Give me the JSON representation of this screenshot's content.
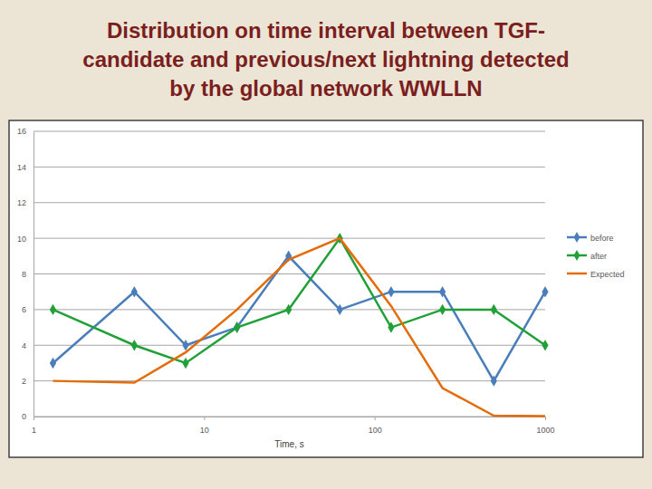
{
  "chart_data": {
    "type": "line",
    "title": "Distribution on time interval between TGF-\ncandidate and previous/next lightning detected\nby the global network WWLLN",
    "x_label": "Time, s",
    "x": [
      1.3,
      3.9,
      7.8,
      15.6,
      31.3,
      62.5,
      125,
      250,
      500,
      1000
    ],
    "series": [
      {
        "name": "before",
        "color": "#4a7ebb",
        "marker": "diamond",
        "line_style": "solid",
        "values": [
          3,
          7,
          4,
          5,
          9,
          6,
          7,
          7,
          2,
          7
        ]
      },
      {
        "name": "after",
        "color": "#21a038",
        "marker": "diamond",
        "line_style": "solid",
        "values": [
          6,
          4,
          3,
          5,
          6,
          10,
          5,
          6,
          6,
          4
        ]
      },
      {
        "name": "Expected",
        "color": "#e46c0a",
        "marker": "none",
        "line_style": "solid",
        "values": [
          2,
          1.9,
          3.6,
          6,
          8.8,
          10,
          6.2,
          1.6,
          0.05,
          0.02
        ]
      }
    ],
    "log": "x",
    "xlim": [
      1,
      1000
    ],
    "xticks": [
      1,
      10,
      100,
      1000
    ],
    "ylim": [
      0,
      16
    ],
    "yticks": [
      0,
      2,
      4,
      6,
      8,
      10,
      12,
      14,
      16
    ],
    "grid": true,
    "legend": "right"
  }
}
